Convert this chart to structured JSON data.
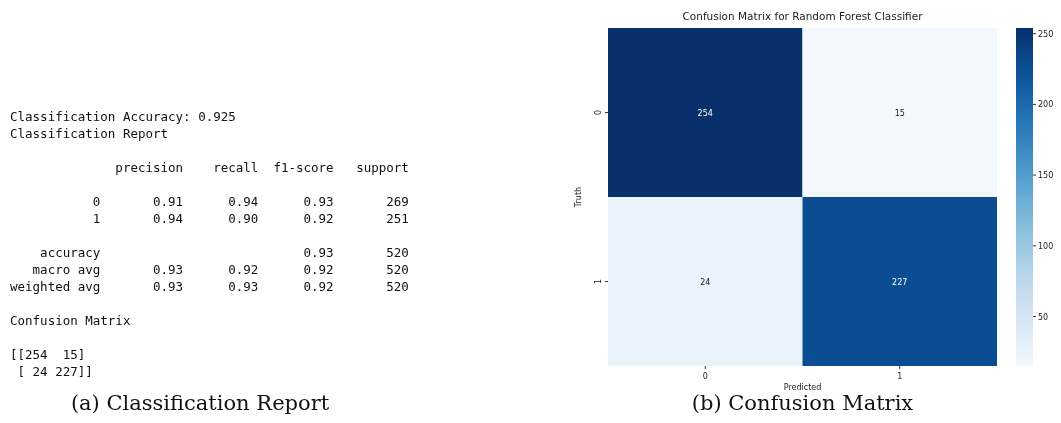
{
  "chart_data": [
    {
      "type": "other",
      "annotations": [
        "Classification Accuracy: 0.925\nClassification Report\n\n              precision    recall  f1-score   support\n\n           0       0.91      0.94      0.93       269\n           1       0.94      0.90      0.92       251\n\n    accuracy                           0.93       520\n   macro avg       0.93      0.92      0.92       520\nweighted avg       0.93      0.93      0.92       520\n\nConfusion Matrix\n\n[[254  15]\n [ 24 227]]",
        "(a) Classification Report"
      ]
    },
    {
      "type": "heatmap",
      "title": "Confusion Matrix for Random Forest Classifier",
      "xlabel": "Predicted",
      "ylabel": "Truth",
      "categories": [
        "0",
        "1"
      ],
      "y_categories": [
        "0",
        "1"
      ],
      "cells": [
        [
          254,
          15
        ],
        [
          24,
          227
        ]
      ],
      "data_labels": true,
      "clim": [
        15,
        254
      ],
      "cticks": [
        50,
        100,
        150,
        200,
        250
      ],
      "annotations": [
        "(b) Confusion Matrix"
      ]
    }
  ]
}
